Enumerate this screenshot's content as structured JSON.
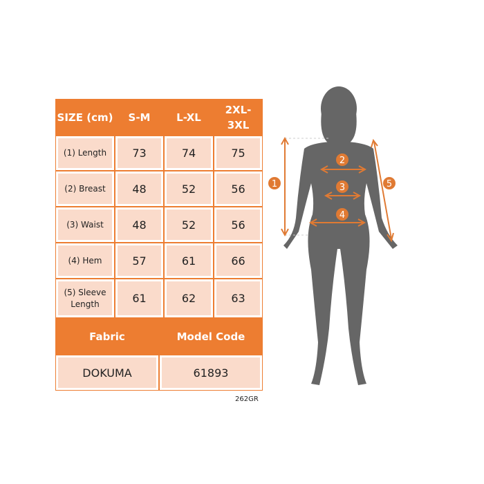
{
  "table": {
    "headers": [
      "SIZE (cm)",
      "S-M",
      "L-XL",
      "2XL-3XL"
    ],
    "rows": [
      {
        "label": "(1) Length",
        "values": [
          "73",
          "74",
          "75"
        ]
      },
      {
        "label": "(2) Breast",
        "values": [
          "48",
          "52",
          "56"
        ]
      },
      {
        "label": "(3) Waist",
        "values": [
          "48",
          "52",
          "56"
        ]
      },
      {
        "label": "(4) Hem",
        "values": [
          "57",
          "61",
          "66"
        ]
      },
      {
        "label": "(5) Sleeve Length",
        "values": [
          "61",
          "62",
          "63"
        ]
      }
    ],
    "fabric_label": "Fabric",
    "model_code_label": "Model Code",
    "fabric": "DOKUMA",
    "model_code": "61893"
  },
  "product_code": "262GR",
  "figure": {
    "markers": [
      "1",
      "2",
      "3",
      "4",
      "5"
    ]
  },
  "colors": {
    "accent": "#ED7D31",
    "cell": "#FADBCB",
    "silhouette": "#666666"
  }
}
